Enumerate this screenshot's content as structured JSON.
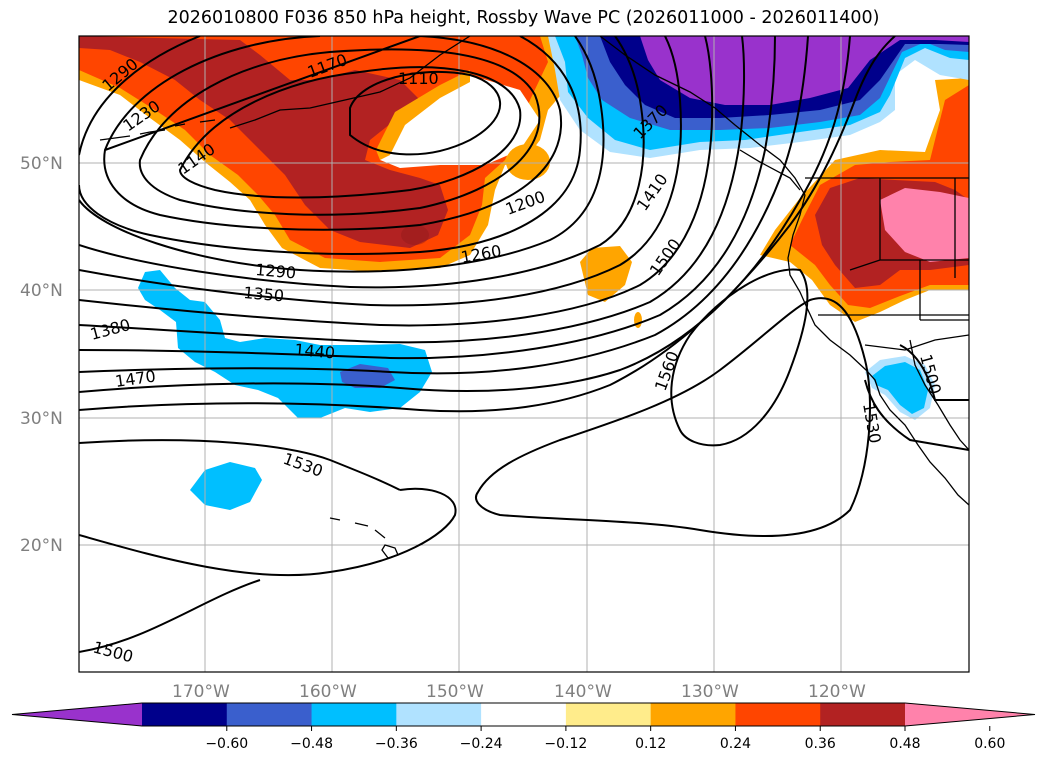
{
  "title": "2026010800 F036 850 hPa height, Rossby Wave PC (2026011000 - 2026011400)",
  "lat_ticks": [
    "20°N",
    "30°N",
    "40°N",
    "50°N"
  ],
  "lon_ticks": [
    "170°W",
    "160°W",
    "150°W",
    "140°W",
    "130°W",
    "120°W"
  ],
  "colorbar": {
    "ticks": [
      "−0.60",
      "−0.48",
      "−0.36",
      "−0.24",
      "−0.12",
      "0.12",
      "0.24",
      "0.36",
      "0.48",
      "0.60"
    ],
    "colors": [
      "#9932cc",
      "#00008b",
      "#3a5fcd",
      "#00bfff",
      "#b0e2ff",
      "#ffffff",
      "#ffec8b",
      "#ffa500",
      "#ff4500",
      "#b22222",
      "#ff82ab"
    ],
    "extend": "both"
  },
  "colors": {
    "contour": "#000000",
    "grid": "#b0b0b0",
    "coast": "#000000"
  },
  "contour_labels": [
    "1290",
    "1230",
    "1170",
    "1110",
    "1140",
    "1200",
    "1260",
    "1290",
    "1350",
    "1380",
    "1440",
    "1470",
    "1410",
    "1500",
    "1370",
    "1560",
    "1530",
    "1530",
    "1500",
    "1500"
  ]
}
